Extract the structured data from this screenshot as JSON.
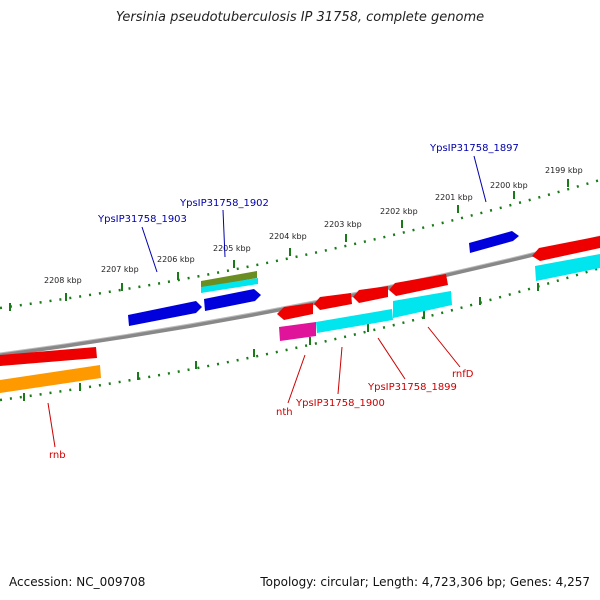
{
  "title": "Yersinia pseudotuberculosis IP 31758, complete genome",
  "footer": {
    "accession": "Accession: NC_009708",
    "topology": "Topology: circular; Length: 4,723,306 bp; Genes: 4,257"
  },
  "scale_labels": [
    "2208 kbp",
    "2207 kbp",
    "2206 kbp",
    "2205 kbp",
    "2204 kbp",
    "2203 kbp",
    "2202 kbp",
    "2201 kbp",
    "2200 kbp",
    "2199 kbp"
  ],
  "gene_labels": {
    "ypsIP31758_1903": "YpsIP31758_1903",
    "ypsIP31758_1902": "YpsIP31758_1902",
    "ypsIP31758_1897": "YpsIP31758_1897",
    "nth": "nth",
    "ypsIP31758_1900": "YpsIP31758_1900",
    "ypsIP31758_1899": "YpsIP31758_1899",
    "rnfD": "rnfD",
    "rnb": "rnb"
  },
  "colors": {
    "forward_gene": "#0000dd",
    "reverse_gene": "#ee0000",
    "cds_cyan": "#00e5ee",
    "cds_orange": "#ff9900",
    "cds_magenta": "#e0149b",
    "cds_olive": "#6b8e23",
    "backbone": "#888888",
    "tick": "#1a7a1a",
    "label_blue": "#0000aa",
    "label_red": "#cc0000"
  }
}
